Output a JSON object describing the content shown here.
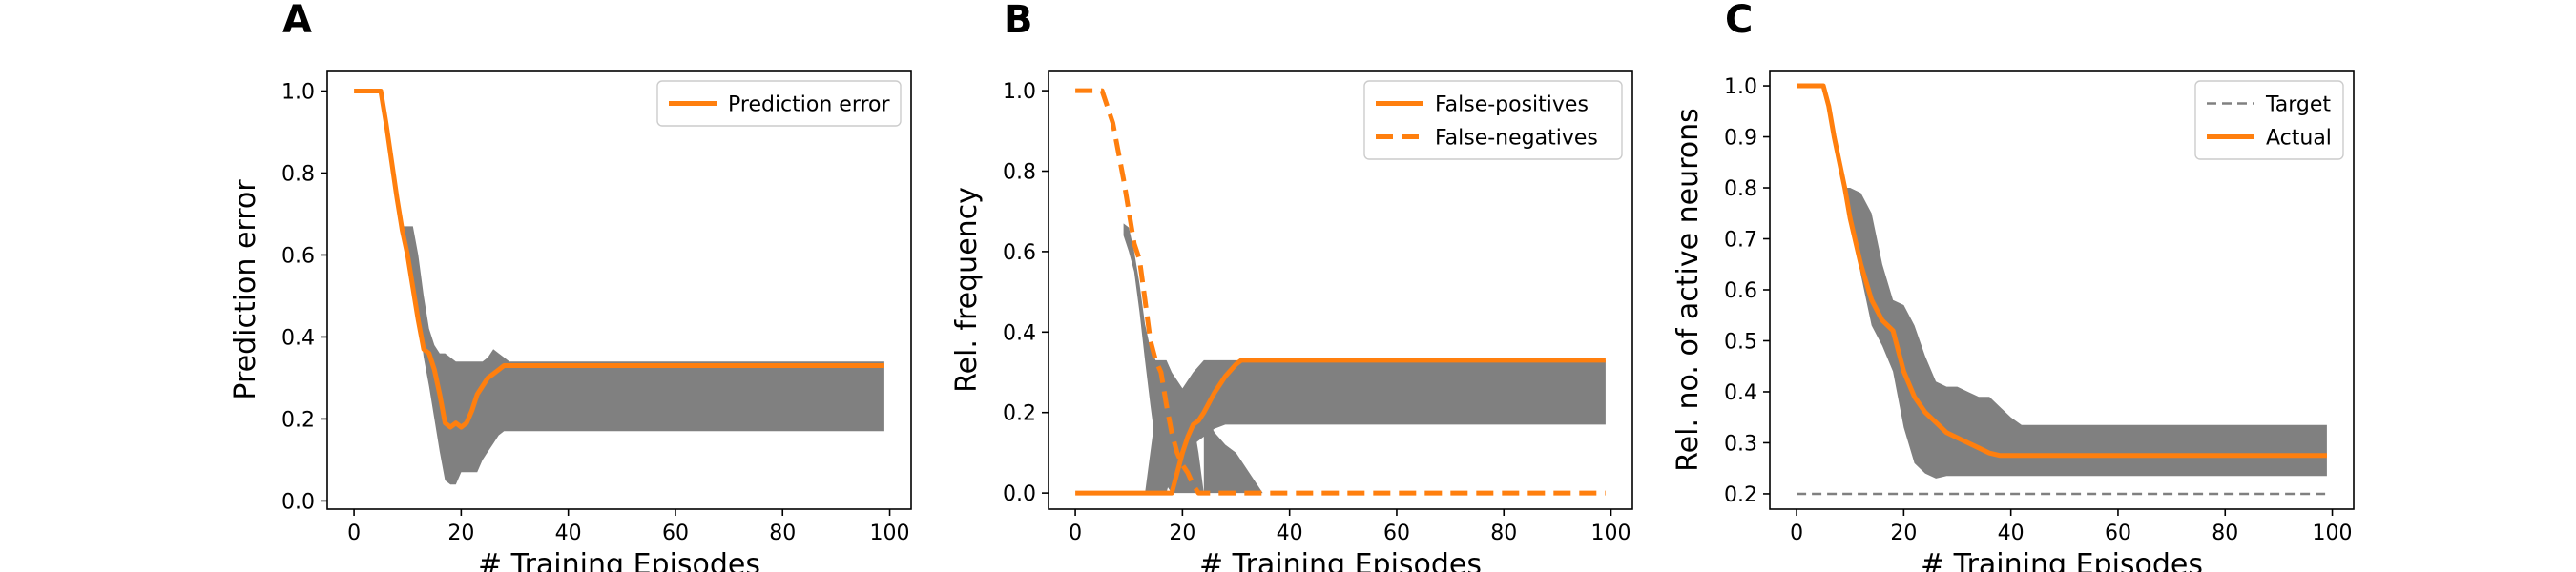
{
  "chart_data": [
    {
      "panel": "A",
      "type": "line",
      "xlabel": "# Training Episodes",
      "ylabel": "Prediction error",
      "xlim": [
        -5,
        104
      ],
      "ylim": [
        -0.02,
        1.05
      ],
      "xticks": [
        0,
        20,
        40,
        60,
        80,
        100
      ],
      "yticks": [
        0.0,
        0.2,
        0.4,
        0.6,
        0.8,
        1.0
      ],
      "ytick_labels": [
        "0.0",
        "0.2",
        "0.4",
        "0.6",
        "0.8",
        "1.0"
      ],
      "legend": "top-right",
      "bands": [
        {
          "color": "#808080",
          "x": [
            9,
            10,
            11,
            12,
            13,
            14,
            15,
            16,
            17,
            18,
            19,
            20,
            21,
            22,
            23,
            24,
            25,
            26,
            27,
            28,
            29,
            30,
            31,
            99
          ],
          "lower": [
            0.64,
            0.6,
            0.55,
            0.45,
            0.35,
            0.28,
            0.2,
            0.12,
            0.05,
            0.04,
            0.04,
            0.07,
            0.07,
            0.07,
            0.07,
            0.1,
            0.12,
            0.14,
            0.16,
            0.17,
            0.17,
            0.17,
            0.17,
            0.17
          ],
          "upper": [
            0.67,
            0.67,
            0.67,
            0.6,
            0.5,
            0.42,
            0.38,
            0.36,
            0.36,
            0.35,
            0.34,
            0.34,
            0.34,
            0.34,
            0.34,
            0.34,
            0.35,
            0.37,
            0.36,
            0.35,
            0.34,
            0.34,
            0.34,
            0.34
          ]
        }
      ],
      "series": [
        {
          "name": "Prediction error",
          "color": "#ff7f0e",
          "dash": "solid",
          "x": [
            0,
            1,
            2,
            3,
            4,
            5,
            6,
            7,
            8,
            9,
            10,
            11,
            12,
            13,
            14,
            15,
            16,
            17,
            18,
            19,
            20,
            21,
            22,
            23,
            24,
            25,
            26,
            27,
            28,
            29,
            30,
            31,
            99
          ],
          "y": [
            1.0,
            1.0,
            1.0,
            1.0,
            1.0,
            1.0,
            0.92,
            0.83,
            0.74,
            0.66,
            0.6,
            0.52,
            0.44,
            0.37,
            0.36,
            0.32,
            0.26,
            0.19,
            0.18,
            0.19,
            0.18,
            0.19,
            0.22,
            0.26,
            0.28,
            0.3,
            0.31,
            0.32,
            0.33,
            0.33,
            0.33,
            0.33,
            0.33
          ]
        }
      ]
    },
    {
      "panel": "B",
      "type": "line",
      "xlabel": "# Training Episodes",
      "ylabel": "Rel. frequency",
      "xlim": [
        -5,
        104
      ],
      "ylim": [
        -0.04,
        1.05
      ],
      "xticks": [
        0,
        20,
        40,
        60,
        80,
        100
      ],
      "yticks": [
        0.0,
        0.2,
        0.4,
        0.6,
        0.8,
        1.0
      ],
      "ytick_labels": [
        "0.0",
        "0.2",
        "0.4",
        "0.6",
        "0.8",
        "1.0"
      ],
      "legend": "top-right",
      "bands": [
        {
          "color": "#808080",
          "x": [
            9,
            10,
            11,
            12,
            13,
            14,
            15,
            16,
            17,
            18,
            19,
            20,
            21,
            22,
            23,
            24
          ],
          "lower": [
            0.64,
            0.6,
            0.55,
            0.45,
            0.33,
            0.22,
            0.12,
            0.05,
            0.02,
            0.0,
            0.0,
            0.0,
            0.0,
            0.0,
            0.0,
            0.0
          ],
          "upper": [
            0.67,
            0.66,
            0.6,
            0.52,
            0.42,
            0.36,
            0.33,
            0.33,
            0.33,
            0.3,
            0.28,
            0.26,
            0.22,
            0.18,
            0.1,
            0.0
          ]
        },
        {
          "color": "#808080",
          "x": [
            13,
            14,
            15,
            16,
            17,
            18,
            19,
            20,
            22,
            24,
            26,
            28,
            30,
            32,
            99
          ],
          "lower": [
            0.0,
            0.0,
            0.0,
            0.0,
            0.0,
            0.05,
            0.08,
            0.1,
            0.12,
            0.14,
            0.16,
            0.17,
            0.17,
            0.17,
            0.17
          ],
          "upper": [
            0.0,
            0.1,
            0.2,
            0.28,
            0.33,
            0.3,
            0.26,
            0.26,
            0.3,
            0.33,
            0.33,
            0.33,
            0.33,
            0.33,
            0.33
          ]
        },
        {
          "color": "#808080",
          "x": [
            24,
            26,
            28,
            30,
            32,
            34,
            35
          ],
          "lower": [
            0.0,
            0.0,
            0.0,
            0.0,
            0.0,
            0.0,
            0.0
          ],
          "upper": [
            0.2,
            0.15,
            0.12,
            0.1,
            0.06,
            0.02,
            0.0
          ]
        }
      ],
      "series": [
        {
          "name": "False-positives",
          "color": "#ff7f0e",
          "dash": "solid",
          "x": [
            0,
            10,
            15,
            16,
            17,
            18,
            19,
            20,
            21,
            22,
            23,
            24,
            26,
            28,
            30,
            31,
            99
          ],
          "y": [
            0.0,
            0.0,
            0.0,
            0.0,
            0.0,
            0.0,
            0.05,
            0.1,
            0.14,
            0.17,
            0.18,
            0.2,
            0.25,
            0.29,
            0.32,
            0.33,
            0.33
          ]
        },
        {
          "name": "False-negatives",
          "color": "#ff7f0e",
          "dash": "dashed",
          "x": [
            0,
            5,
            7,
            9,
            10,
            11,
            12,
            13,
            14,
            15,
            16,
            17,
            18,
            19,
            20,
            21,
            22,
            23,
            24,
            99
          ],
          "y": [
            1.0,
            1.0,
            0.92,
            0.78,
            0.7,
            0.62,
            0.58,
            0.48,
            0.38,
            0.33,
            0.3,
            0.22,
            0.15,
            0.1,
            0.07,
            0.05,
            0.02,
            0.0,
            0.0,
            0.0
          ]
        }
      ]
    },
    {
      "panel": "C",
      "type": "line",
      "xlabel": "# Training Episodes",
      "ylabel": "Rel. no. of active neurons",
      "xlim": [
        -5,
        104
      ],
      "ylim": [
        0.17,
        1.03
      ],
      "xticks": [
        0,
        20,
        40,
        60,
        80,
        100
      ],
      "yticks": [
        0.2,
        0.3,
        0.4,
        0.5,
        0.6,
        0.7,
        0.8,
        0.9,
        1.0
      ],
      "ytick_labels": [
        "0.2",
        "0.3",
        "0.4",
        "0.5",
        "0.6",
        "0.7",
        "0.8",
        "0.9",
        "1.0"
      ],
      "legend": "top-right",
      "bands": [
        {
          "color": "#808080",
          "x": [
            9,
            10,
            12,
            14,
            16,
            18,
            20,
            22,
            24,
            26,
            28,
            30,
            32,
            34,
            36,
            38,
            40,
            42,
            99
          ],
          "lower": [
            0.8,
            0.74,
            0.63,
            0.53,
            0.49,
            0.44,
            0.33,
            0.26,
            0.24,
            0.23,
            0.235,
            0.235,
            0.235,
            0.235,
            0.235,
            0.235,
            0.235,
            0.235,
            0.235
          ],
          "upper": [
            0.8,
            0.8,
            0.79,
            0.75,
            0.65,
            0.58,
            0.57,
            0.53,
            0.47,
            0.42,
            0.41,
            0.41,
            0.4,
            0.39,
            0.39,
            0.37,
            0.35,
            0.335,
            0.335
          ]
        }
      ],
      "series": [
        {
          "name": "Target",
          "color": "#808080",
          "dash": "dashed",
          "x": [
            0,
            99
          ],
          "y": [
            0.2,
            0.2
          ]
        },
        {
          "name": "Actual",
          "color": "#ff7f0e",
          "dash": "solid",
          "x": [
            0,
            1,
            2,
            3,
            4,
            5,
            6,
            7,
            8,
            9,
            10,
            12,
            14,
            16,
            18,
            20,
            22,
            24,
            26,
            28,
            30,
            32,
            34,
            36,
            38,
            40,
            99
          ],
          "y": [
            1.0,
            1.0,
            1.0,
            1.0,
            1.0,
            1.0,
            0.96,
            0.9,
            0.85,
            0.8,
            0.74,
            0.65,
            0.58,
            0.54,
            0.52,
            0.44,
            0.39,
            0.36,
            0.34,
            0.32,
            0.31,
            0.3,
            0.29,
            0.28,
            0.275,
            0.275,
            0.275
          ]
        }
      ]
    }
  ]
}
